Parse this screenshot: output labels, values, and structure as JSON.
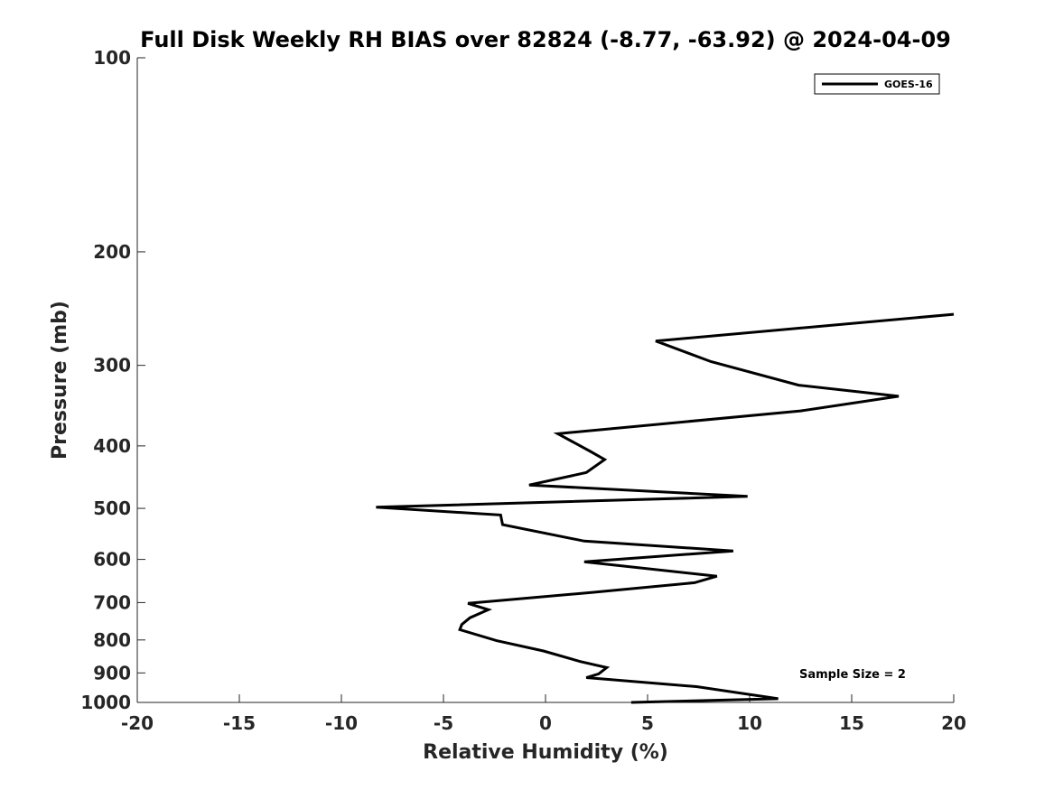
{
  "chart_data": {
    "type": "line",
    "title": "Full Disk Weekly RH BIAS over 82824 (-8.77, -63.92) @ 2024-04-09",
    "xlabel": "Relative Humidity (%)",
    "ylabel": "Pressure (mb)",
    "xlim": [
      -20,
      20
    ],
    "ylim": [
      100,
      1000
    ],
    "y_scale": "log",
    "y_reversed": true,
    "grid": false,
    "legend_placement": "top-right",
    "x_ticks": [
      "-20",
      "-15",
      "-10",
      "-5",
      "0",
      "5",
      "10",
      "15",
      "20"
    ],
    "y_ticks": [
      "100",
      "200",
      "300",
      "400",
      "500",
      "600",
      "700",
      "800",
      "900",
      "1000"
    ],
    "annotation": "Sample Size = 2",
    "series": [
      {
        "name": "GOES-16",
        "color": "#000000",
        "points": [
          [
            20.0,
            250
          ],
          [
            5.4,
            275
          ],
          [
            8.1,
            296
          ],
          [
            12.4,
            322
          ],
          [
            17.3,
            335
          ],
          [
            12.5,
            353
          ],
          [
            0.6,
            383
          ],
          [
            2.2,
            408
          ],
          [
            2.9,
            420
          ],
          [
            2.0,
            440
          ],
          [
            -0.8,
            460
          ],
          [
            9.9,
            479
          ],
          [
            -8.3,
            498
          ],
          [
            -2.2,
            512
          ],
          [
            -2.1,
            530
          ],
          [
            1.9,
            562
          ],
          [
            9.2,
            582
          ],
          [
            1.9,
            605
          ],
          [
            8.4,
            637
          ],
          [
            7.3,
            652
          ],
          [
            2.3,
            675
          ],
          [
            -3.8,
            702
          ],
          [
            -2.8,
            718
          ],
          [
            -3.7,
            739
          ],
          [
            -4.1,
            757
          ],
          [
            -4.2,
            771
          ],
          [
            -2.4,
            802
          ],
          [
            -0.1,
            832
          ],
          [
            1.7,
            864
          ],
          [
            3.0,
            883
          ],
          [
            2.6,
            903
          ],
          [
            2.0,
            915
          ],
          [
            7.4,
            945
          ],
          [
            11.4,
            987
          ],
          [
            4.2,
            1000
          ]
        ]
      }
    ]
  }
}
